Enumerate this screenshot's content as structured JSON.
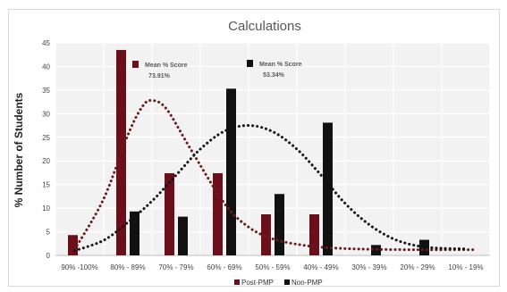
{
  "chart_data": {
    "type": "bar",
    "title": "Calculations",
    "ylabel": "% Number of Students",
    "xlabel": "",
    "ylim": [
      0,
      45
    ],
    "yticks": [
      0,
      5,
      10,
      15,
      20,
      25,
      30,
      35,
      40,
      45
    ],
    "grid": true,
    "legend_position": "bottom",
    "categories": [
      "90% -100%",
      "80% - 89%",
      "70% - 79%",
      "60% - 69%",
      "50% - 59%",
      "40% - 49%",
      "30% - 39%",
      "20% - 29%",
      "10% - 19%"
    ],
    "series": [
      {
        "name": "Post-PMP",
        "color": "#6b0f1a",
        "values": [
          4.3,
          43.5,
          17.4,
          17.4,
          8.7,
          8.7,
          0,
          0,
          0
        ]
      },
      {
        "name": "Non-PMP",
        "color": "#111111",
        "values": [
          0,
          9.3,
          8.2,
          35.3,
          13,
          28.1,
          2.2,
          3.3,
          0
        ]
      }
    ],
    "trendlines": [
      {
        "series": "Post-PMP",
        "style": "dotted",
        "color": "#6b1a1a",
        "points": [
          [
            -0.1,
            1.3
          ],
          [
            0.5,
            12
          ],
          [
            1.0,
            25.5
          ],
          [
            1.3,
            31.5
          ],
          [
            1.5,
            32.8
          ],
          [
            1.8,
            31
          ],
          [
            2.3,
            22.5
          ],
          [
            3.0,
            11
          ],
          [
            3.5,
            6
          ],
          [
            4.0,
            3.5
          ],
          [
            4.6,
            2.2
          ],
          [
            5.2,
            1.6
          ],
          [
            6.0,
            1.3
          ],
          [
            7.0,
            1.2
          ],
          [
            8.0,
            1.2
          ],
          [
            8.15,
            1.2
          ]
        ]
      },
      {
        "series": "Non-PMP",
        "style": "dotted",
        "color": "#111111",
        "points": [
          [
            -0.1,
            1.0
          ],
          [
            0.5,
            3.2
          ],
          [
            1.0,
            7.0
          ],
          [
            1.5,
            11.5
          ],
          [
            2.0,
            17.0
          ],
          [
            2.5,
            22.5
          ],
          [
            3.0,
            26.3
          ],
          [
            3.5,
            27.5
          ],
          [
            4.0,
            26.2
          ],
          [
            4.5,
            22.5
          ],
          [
            5.0,
            17.0
          ],
          [
            5.5,
            11.0
          ],
          [
            6.0,
            6.5
          ],
          [
            6.5,
            3.5
          ],
          [
            7.0,
            2.0
          ],
          [
            7.5,
            1.5
          ],
          [
            8.0,
            1.4
          ]
        ]
      }
    ],
    "annotations": [
      {
        "series": "Post-PMP",
        "label": "Mean % Score",
        "value": "73.91%"
      },
      {
        "series": "Non-PMP",
        "label": "Mean % Score",
        "value": "53.34%"
      }
    ]
  }
}
